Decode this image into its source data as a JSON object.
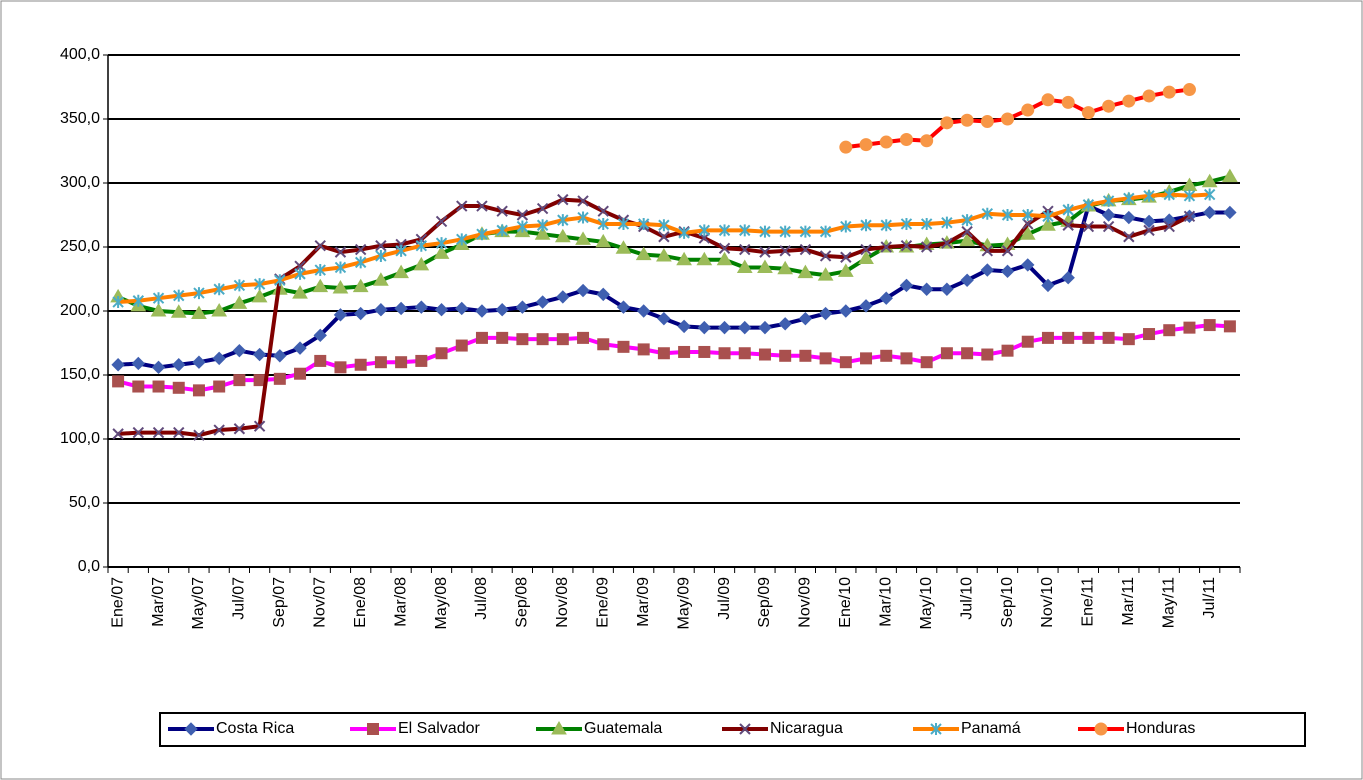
{
  "chart_data": {
    "type": "line",
    "categories": [
      "Ene/07",
      null,
      "Mar/07",
      null,
      "May/07",
      null,
      "Jul/07",
      null,
      "Sep/07",
      null,
      "Nov/07",
      null,
      "Ene/08",
      null,
      "Mar/08",
      null,
      "May/08",
      null,
      "Jul/08",
      null,
      "Sep/08",
      null,
      "Nov/08",
      null,
      "Ene/09",
      null,
      "Mar/09",
      null,
      "May/09",
      null,
      "Jul/09",
      null,
      "Sep/09",
      null,
      "Nov/09",
      null,
      "Ene/10",
      null,
      "Mar/10",
      null,
      "May/10",
      null,
      "Jul/10",
      null,
      "Sep/10",
      null,
      "Nov/10",
      null,
      "Ene/11",
      null,
      "Mar/11",
      null,
      "May/11",
      null,
      "Jul/11",
      null
    ],
    "ylim": [
      0,
      400
    ],
    "yticks": [
      {
        "value": 0,
        "label": "0,0"
      },
      {
        "value": 50,
        "label": "50,0"
      },
      {
        "value": 100,
        "label": "100,0"
      },
      {
        "value": 150,
        "label": "150,0"
      },
      {
        "value": 200,
        "label": "200,0"
      },
      {
        "value": 250,
        "label": "250,0"
      },
      {
        "value": 300,
        "label": "300,0"
      },
      {
        "value": 350,
        "label": "350,0"
      },
      {
        "value": 400,
        "label": "400,0"
      }
    ],
    "grid": true,
    "legend": "bottom",
    "series": [
      {
        "name": "Costa Rica",
        "color": "#000080",
        "marker": "diamond",
        "marker_color": "#3f5fb0",
        "values": [
          158,
          159,
          156,
          158,
          160,
          163,
          169,
          166,
          165,
          171,
          181,
          197,
          198,
          201,
          202,
          203,
          201,
          202,
          200,
          201,
          203,
          207,
          211,
          216,
          213,
          203,
          200,
          194,
          188,
          187,
          187,
          187,
          187,
          190,
          194,
          198,
          200,
          204,
          210,
          220,
          217,
          217,
          224,
          232,
          231,
          236,
          220,
          226,
          282,
          275,
          273,
          270,
          271,
          274,
          277,
          277
        ]
      },
      {
        "name": "El Salvador",
        "color": "#ff00ff",
        "marker": "square",
        "marker_color": "#a9504e",
        "values": [
          145,
          141,
          141,
          140,
          138,
          141,
          146,
          146,
          147,
          151,
          161,
          156,
          158,
          160,
          160,
          161,
          167,
          173,
          179,
          179,
          178,
          178,
          178,
          179,
          174,
          172,
          170,
          167,
          168,
          168,
          167,
          167,
          166,
          165,
          165,
          163,
          160,
          163,
          165,
          163,
          160,
          167,
          167,
          166,
          169,
          176,
          179,
          179,
          179,
          179,
          178,
          182,
          185,
          187,
          189,
          188
        ]
      },
      {
        "name": "Guatemala",
        "color": "#008000",
        "marker": "triangle",
        "marker_color": "#9bbb59",
        "values": [
          211,
          204,
          200,
          199,
          198,
          200,
          206,
          211,
          217,
          214,
          219,
          218,
          219,
          224,
          230,
          236,
          245,
          252,
          260,
          262,
          262,
          260,
          258,
          256,
          254,
          249,
          244,
          243,
          240,
          240,
          240,
          234,
          234,
          233,
          230,
          228,
          231,
          241,
          250,
          250,
          252,
          253,
          255,
          251,
          252,
          260,
          267,
          270,
          282,
          286,
          287,
          289,
          293,
          298,
          301,
          305
        ]
      },
      {
        "name": "Nicaragua",
        "color": "#800000",
        "marker": "x",
        "marker_color": "#604a7b",
        "values": [
          104,
          105,
          105,
          105,
          103,
          107,
          108,
          110,
          225,
          235,
          251,
          246,
          248,
          251,
          252,
          256,
          270,
          282,
          282,
          278,
          275,
          280,
          287,
          286,
          278,
          271,
          266,
          258,
          262,
          257,
          249,
          248,
          246,
          247,
          248,
          243,
          242,
          248,
          250,
          251,
          250,
          253,
          262,
          247,
          247,
          268,
          278,
          267,
          266,
          266,
          258,
          263,
          266,
          274,
          null,
          null
        ]
      },
      {
        "name": "Panamá",
        "color": "#ff8000",
        "marker": "star",
        "marker_color": "#4bacc6",
        "values": [
          207,
          208,
          210,
          212,
          214,
          217,
          220,
          221,
          224,
          229,
          232,
          234,
          238,
          243,
          247,
          251,
          253,
          256,
          260,
          263,
          266,
          267,
          271,
          273,
          268,
          268,
          268,
          267,
          261,
          263,
          263,
          263,
          262,
          262,
          262,
          262,
          266,
          267,
          267,
          268,
          268,
          269,
          271,
          276,
          275,
          275,
          274,
          279,
          283,
          286,
          288,
          290,
          291,
          290,
          291,
          null
        ]
      },
      {
        "name": "Honduras",
        "color": "#ff0000",
        "marker": "circle",
        "marker_color": "#f79646",
        "values": [
          null,
          null,
          null,
          null,
          null,
          null,
          null,
          null,
          null,
          null,
          null,
          null,
          null,
          null,
          null,
          null,
          null,
          null,
          null,
          null,
          null,
          null,
          null,
          null,
          null,
          null,
          null,
          null,
          null,
          null,
          null,
          null,
          null,
          null,
          null,
          null,
          328,
          330,
          332,
          334,
          333,
          347,
          349,
          348,
          350,
          357,
          365,
          363,
          355,
          360,
          364,
          368,
          371,
          373,
          null,
          null
        ]
      }
    ]
  }
}
